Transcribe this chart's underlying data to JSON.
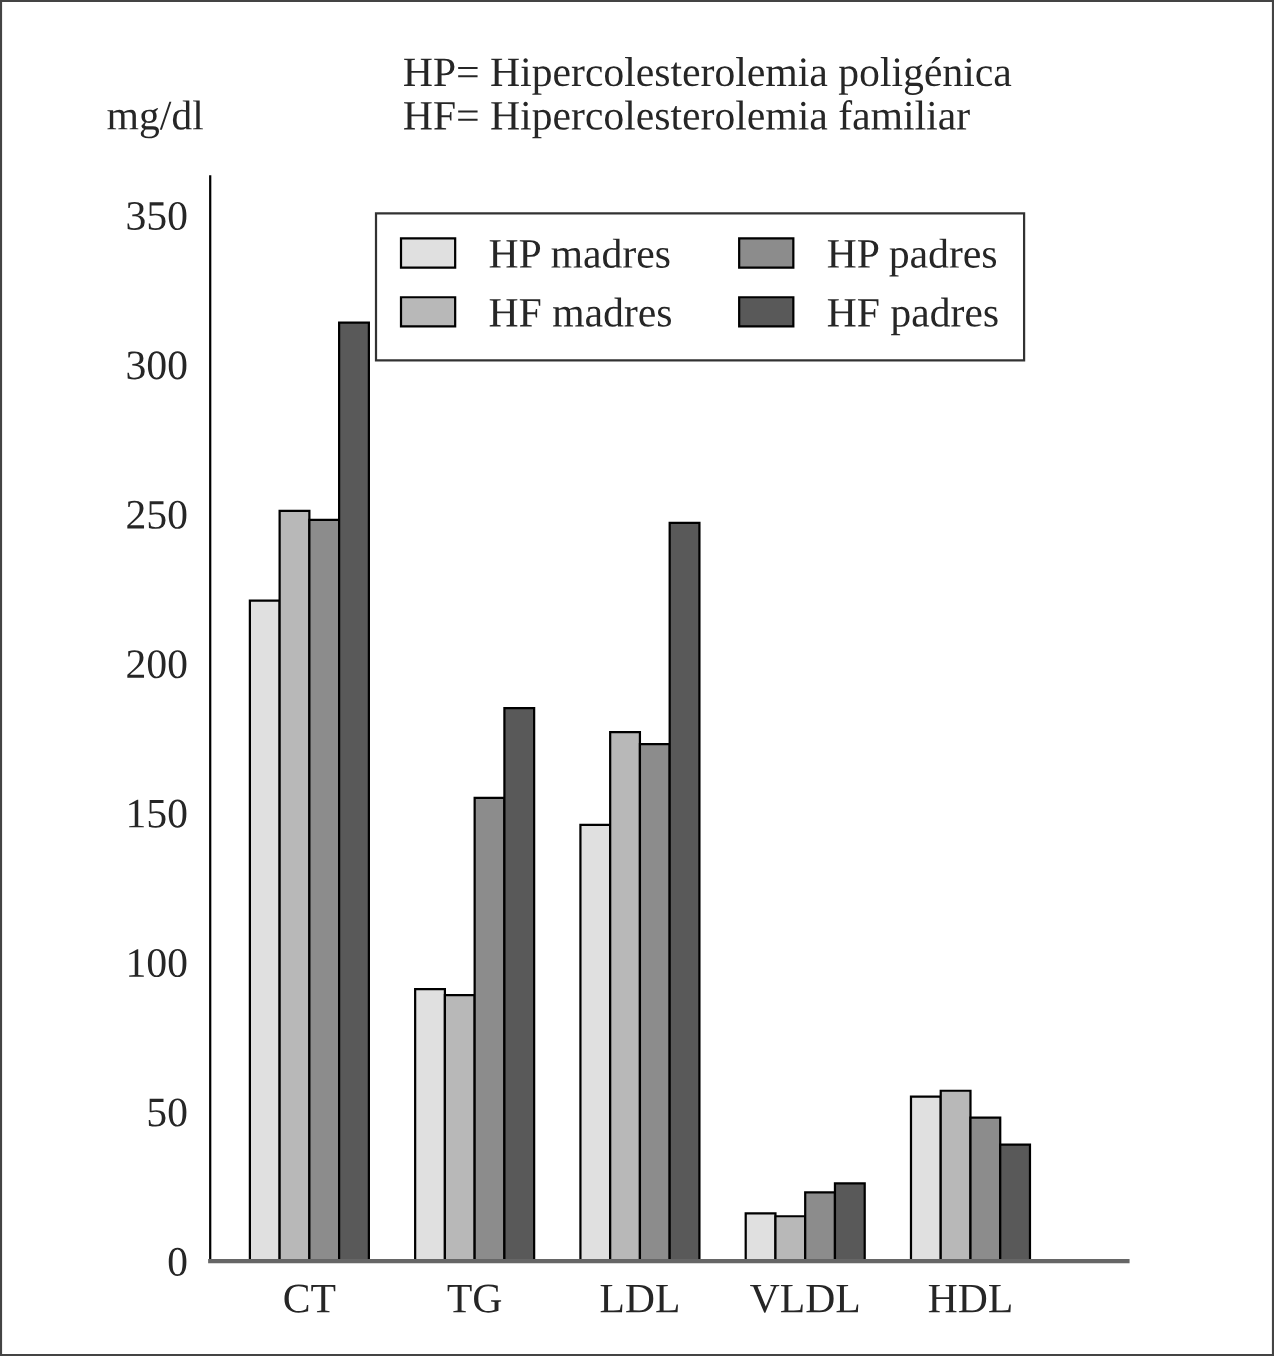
{
  "chart_data": {
    "type": "bar",
    "ylabel": "mg/dl",
    "annotations": [
      "HP= Hipercolesterolemia poligénica",
      "HF= Hipercolesterolemia familiar"
    ],
    "categories": [
      "CT",
      "TG",
      "LDL",
      "VLDL",
      "HDL"
    ],
    "series": [
      {
        "name": "HP madres",
        "color": "#e0e0e0",
        "values": [
          221,
          91,
          146,
          16,
          55
        ]
      },
      {
        "name": "HF madres",
        "color": "#b8b8b8",
        "values": [
          251,
          89,
          177,
          15,
          57
        ]
      },
      {
        "name": "HP padres",
        "color": "#8c8c8c",
        "values": [
          248,
          155,
          173,
          23,
          48
        ]
      },
      {
        "name": "HF padres",
        "color": "#595959",
        "values": [
          314,
          185,
          247,
          26,
          39
        ]
      }
    ],
    "ylim": [
      0,
      363
    ],
    "yticks": [
      0,
      50,
      100,
      150,
      200,
      250,
      300,
      350
    ],
    "grid": false,
    "legend": "top right"
  }
}
